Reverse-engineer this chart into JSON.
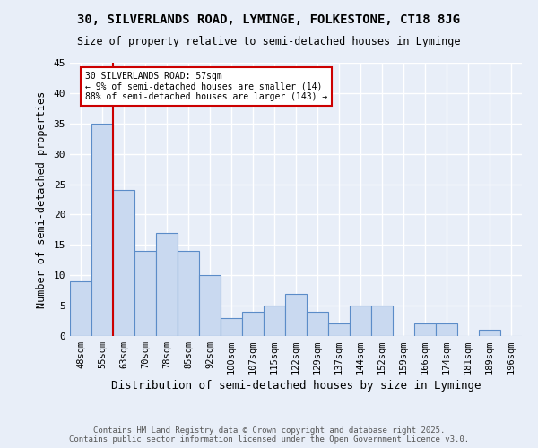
{
  "title1": "30, SILVERLANDS ROAD, LYMINGE, FOLKESTONE, CT18 8JG",
  "title2": "Size of property relative to semi-detached houses in Lyminge",
  "xlabel": "Distribution of semi-detached houses by size in Lyminge",
  "ylabel": "Number of semi-detached properties",
  "categories": [
    "48sqm",
    "55sqm",
    "63sqm",
    "70sqm",
    "78sqm",
    "85sqm",
    "92sqm",
    "100sqm",
    "107sqm",
    "115sqm",
    "122sqm",
    "129sqm",
    "137sqm",
    "144sqm",
    "152sqm",
    "159sqm",
    "166sqm",
    "174sqm",
    "181sqm",
    "189sqm",
    "196sqm"
  ],
  "values": [
    9,
    35,
    24,
    14,
    17,
    14,
    10,
    3,
    4,
    5,
    7,
    4,
    2,
    5,
    5,
    0,
    2,
    2,
    0,
    1,
    0
  ],
  "bar_color": "#c9d9f0",
  "bar_edge_color": "#5b8cc8",
  "bar_width": 1.0,
  "ylim": [
    0,
    45
  ],
  "yticks": [
    0,
    5,
    10,
    15,
    20,
    25,
    30,
    35,
    40,
    45
  ],
  "red_line_x": 1.5,
  "annotation_text": "30 SILVERLANDS ROAD: 57sqm\n← 9% of semi-detached houses are smaller (14)\n88% of semi-detached houses are larger (143) →",
  "annotation_box_color": "#ffffff",
  "annotation_box_edge_color": "#cc0000",
  "background_color": "#e8eef8",
  "grid_color": "#ffffff",
  "footer": "Contains HM Land Registry data © Crown copyright and database right 2025.\nContains public sector information licensed under the Open Government Licence v3.0."
}
